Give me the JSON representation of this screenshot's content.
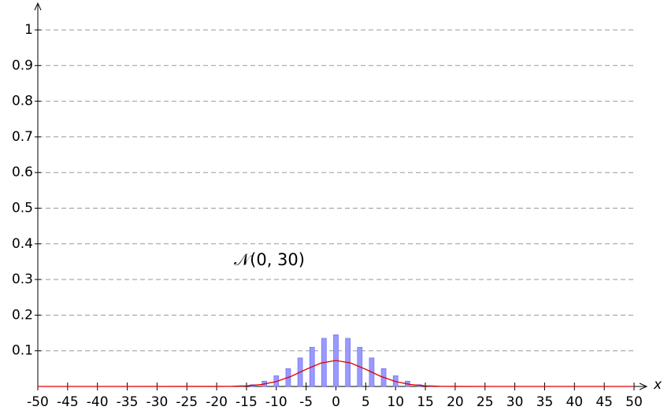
{
  "chart_data": {
    "type": "bar",
    "x_label": "x",
    "annotation": "𝒩(0, 30)",
    "bars": {
      "color": "#9999ff",
      "x": [
        -16,
        -14,
        -12,
        -10,
        -8,
        -6,
        -4,
        -2,
        0,
        2,
        4,
        6,
        8,
        10,
        12,
        14,
        16
      ],
      "values": [
        0.002,
        0.005,
        0.015,
        0.03,
        0.05,
        0.08,
        0.11,
        0.135,
        0.145,
        0.135,
        0.11,
        0.08,
        0.05,
        0.03,
        0.015,
        0.005,
        0.002
      ]
    },
    "curve": {
      "color": "#e00000",
      "x": [
        -50,
        -20,
        -17.5,
        -15,
        -12.5,
        -10,
        -7.5,
        -5,
        -2.5,
        0,
        2.5,
        5,
        7.5,
        10,
        12.5,
        15,
        17.5,
        20,
        50
      ],
      "values": [
        0,
        0.0001,
        0.0004,
        0.0017,
        0.0054,
        0.0138,
        0.0285,
        0.048,
        0.0656,
        0.0728,
        0.0656,
        0.048,
        0.0285,
        0.0138,
        0.0054,
        0.0017,
        0.0004,
        0.0001,
        0
      ]
    },
    "xlim": [
      -50,
      50
    ],
    "ylim": [
      0,
      1
    ],
    "xticks": [
      -50,
      -45,
      -40,
      -35,
      -30,
      -25,
      -20,
      -15,
      -10,
      -5,
      0,
      5,
      10,
      15,
      20,
      25,
      30,
      35,
      40,
      45,
      50
    ],
    "yticks": [
      0.1,
      0.2,
      0.3,
      0.4,
      0.5,
      0.6,
      0.7,
      0.8,
      0.9,
      1
    ],
    "grid": true
  }
}
